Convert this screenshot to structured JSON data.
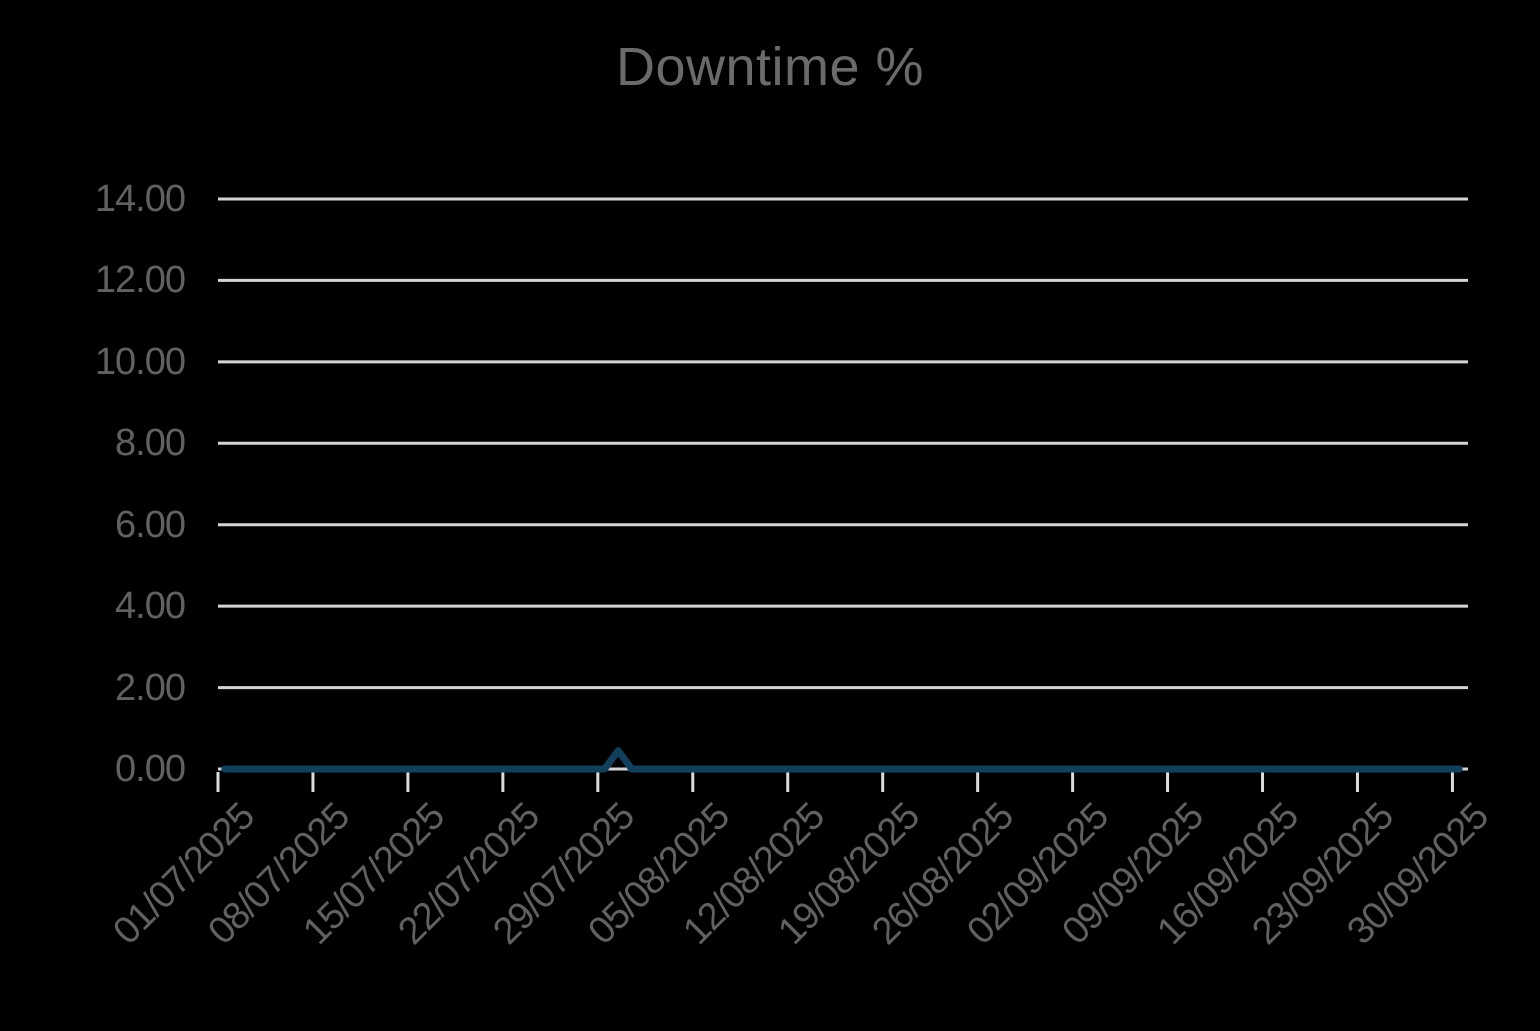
{
  "title": "Downtime %",
  "colors": {
    "background": "#000000",
    "title_text": "#6a6a6a",
    "axis_label_text": "#616161",
    "gridline": "#d5d5d5",
    "tick_mark": "#dcdcdc",
    "series_line": "#123f5c"
  },
  "chart_data": {
    "type": "line",
    "title": "Downtime %",
    "series_name": "Downtime %",
    "interval": "daily",
    "start_date": "01/07/2025",
    "end_date": "30/09/2025",
    "x_tick_labels": [
      "01/07/2025",
      "08/07/2025",
      "15/07/2025",
      "22/07/2025",
      "29/07/2025",
      "05/08/2025",
      "12/08/2025",
      "19/08/2025",
      "26/08/2025",
      "02/09/2025",
      "09/09/2025",
      "16/09/2025",
      "23/09/2025",
      "30/09/2025"
    ],
    "y_tick_labels": [
      "14.00",
      "12.00",
      "10.00",
      "8.00",
      "6.00",
      "4.00",
      "2.00",
      "0.00"
    ],
    "ylim": [
      0,
      14
    ],
    "y_tick_step": 2,
    "grid": true,
    "legend": false,
    "spike": {
      "date": "30/07/2025",
      "value": 0.45
    },
    "values": [
      0,
      0,
      0,
      0,
      0,
      0,
      0,
      0,
      0,
      0,
      0,
      0,
      0,
      0,
      0,
      0,
      0,
      0,
      0,
      0,
      0,
      0,
      0,
      0,
      0,
      0,
      0,
      0,
      0,
      0.45,
      0,
      0,
      0,
      0,
      0,
      0,
      0,
      0,
      0,
      0,
      0,
      0,
      0,
      0,
      0,
      0,
      0,
      0,
      0,
      0,
      0,
      0,
      0,
      0,
      0,
      0,
      0,
      0,
      0,
      0,
      0,
      0,
      0,
      0,
      0,
      0,
      0,
      0,
      0,
      0,
      0,
      0,
      0,
      0,
      0,
      0,
      0,
      0,
      0,
      0,
      0,
      0,
      0,
      0,
      0,
      0,
      0,
      0,
      0,
      0,
      0,
      0
    ]
  }
}
